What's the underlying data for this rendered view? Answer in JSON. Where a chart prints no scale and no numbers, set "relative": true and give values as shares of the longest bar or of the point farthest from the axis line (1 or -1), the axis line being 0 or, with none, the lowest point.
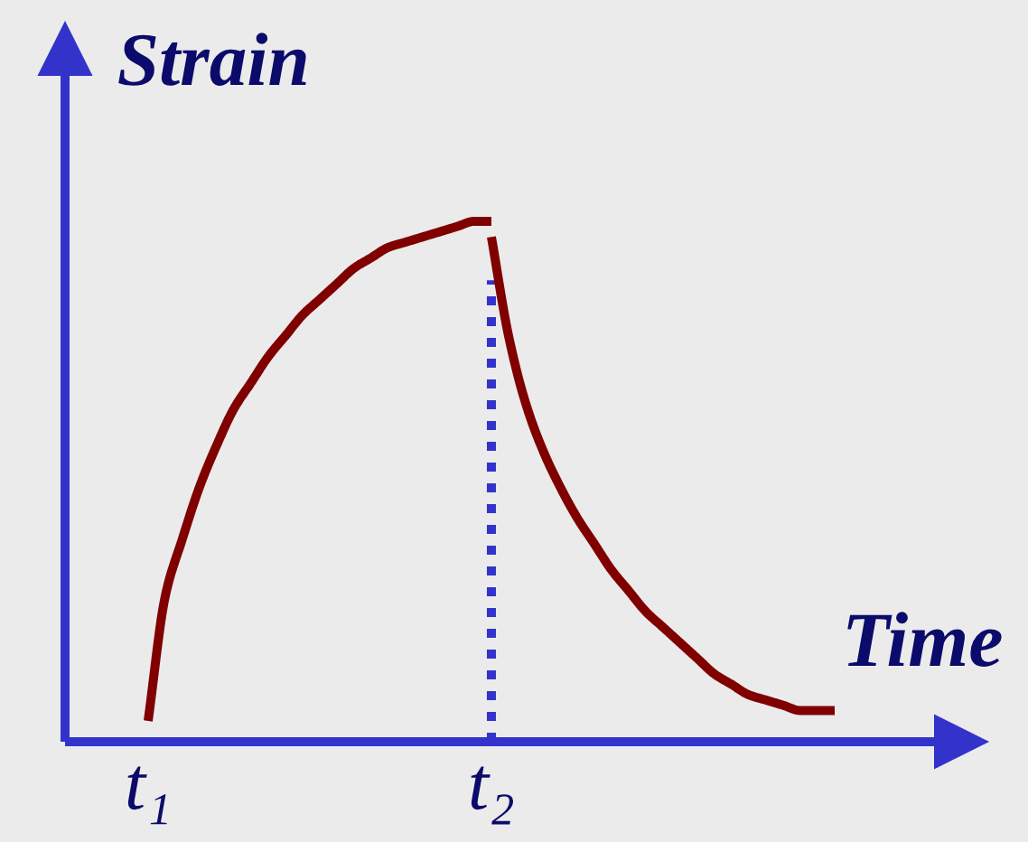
{
  "chart_data": {
    "type": "line",
    "relative": true,
    "xlabel": "Time",
    "ylabel": "Strain",
    "categories": [
      "t₁",
      null,
      null,
      null,
      null,
      null,
      null,
      null,
      null,
      null,
      null,
      null,
      null,
      null,
      null,
      null,
      null,
      null,
      null,
      null,
      "t₂",
      null,
      null,
      null,
      null,
      null,
      null,
      null,
      null,
      null,
      null,
      null,
      null,
      null,
      null,
      null,
      null,
      null,
      null,
      null,
      null
    ],
    "series": [
      {
        "color": "#800000",
        "values": [
          0.04,
          0.28,
          0.39,
          0.49,
          0.57,
          0.64,
          0.69,
          0.74,
          0.78,
          0.82,
          0.85,
          0.88,
          0.91,
          0.93,
          0.95,
          0.96,
          0.97,
          0.98,
          0.99,
          1.0,
          1.0,
          null,
          null,
          null,
          null,
          null,
          null,
          null,
          null,
          null,
          null,
          null,
          null,
          null,
          null,
          null,
          null,
          null,
          null,
          null,
          null
        ]
      },
      {
        "color": "#800000",
        "values": [
          null,
          null,
          null,
          null,
          null,
          null,
          null,
          null,
          null,
          null,
          null,
          null,
          null,
          null,
          null,
          null,
          null,
          null,
          null,
          null,
          0.97,
          0.78,
          0.65,
          0.56,
          0.49,
          0.43,
          0.38,
          0.33,
          0.29,
          0.25,
          0.22,
          0.19,
          0.16,
          0.13,
          0.11,
          0.09,
          0.08,
          0.07,
          0.06,
          0.06,
          0.06
        ]
      }
    ],
    "ref_lines": [
      {
        "axis": "x",
        "value": "t₂",
        "color": "#3333cc",
        "line_style": "dotted"
      }
    ]
  }
}
